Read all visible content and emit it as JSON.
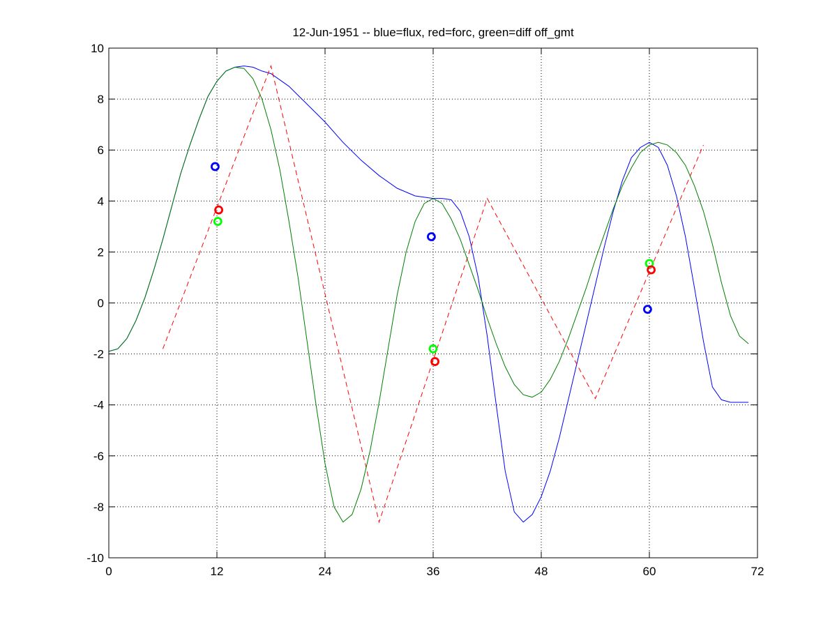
{
  "chart_data": {
    "type": "line",
    "title": "12-Jun-1951 -- blue=flux, red=forc, green=diff off_gmt",
    "xlabel": "",
    "ylabel": "",
    "xlim": [
      0,
      72
    ],
    "ylim": [
      -10,
      10
    ],
    "xticks": [
      0,
      12,
      24,
      36,
      48,
      60,
      72
    ],
    "yticks": [
      -10,
      -8,
      -6,
      -4,
      -2,
      0,
      2,
      4,
      6,
      8,
      10
    ],
    "grid": true,
    "series": [
      {
        "color": "#0000ff",
        "style": "solid",
        "x": [
          0,
          1,
          2,
          3,
          4,
          5,
          6,
          7,
          8,
          9,
          10,
          11,
          12,
          13,
          14,
          15,
          16,
          17,
          18,
          20,
          22,
          24,
          26,
          28,
          30,
          32,
          34,
          36,
          37,
          38,
          39,
          40,
          41,
          42,
          43,
          44,
          45,
          46,
          47,
          48,
          49,
          50,
          51,
          52,
          53,
          54,
          55,
          56,
          57,
          58,
          59,
          60,
          61,
          62,
          63,
          64,
          65,
          66,
          67,
          68,
          69,
          70,
          71
        ],
        "y": [
          -1.9,
          -1.8,
          -1.4,
          -0.7,
          0.2,
          1.3,
          2.5,
          3.8,
          5.1,
          6.2,
          7.2,
          8.1,
          8.7,
          9.1,
          9.25,
          9.3,
          9.25,
          9.1,
          9.0,
          8.5,
          7.8,
          7.1,
          6.3,
          5.6,
          5.0,
          4.5,
          4.2,
          4.1,
          4.1,
          4.05,
          3.6,
          2.6,
          1.0,
          -1.3,
          -4.0,
          -6.6,
          -8.2,
          -8.6,
          -8.3,
          -7.6,
          -6.6,
          -5.3,
          -3.8,
          -2.3,
          -0.8,
          0.7,
          2.2,
          3.6,
          4.8,
          5.7,
          6.1,
          6.3,
          6.1,
          5.4,
          4.2,
          2.6,
          0.6,
          -1.5,
          -3.3,
          -3.8,
          -3.9,
          -3.9,
          -3.9
        ]
      },
      {
        "color": "#ff0000",
        "style": "dashed",
        "x": [
          6,
          18,
          30,
          42,
          54,
          66
        ],
        "y": [
          -1.8,
          9.3,
          -8.6,
          4.1,
          -3.75,
          6.2
        ]
      },
      {
        "color": "#007f00",
        "style": "solid",
        "x": [
          0,
          1,
          2,
          3,
          4,
          5,
          6,
          7,
          8,
          9,
          10,
          11,
          12,
          13,
          14,
          15,
          16,
          17,
          18,
          19,
          20,
          21,
          22,
          23,
          24,
          25,
          26,
          27,
          28,
          29,
          30,
          31,
          32,
          33,
          34,
          35,
          36,
          37,
          38,
          39,
          40,
          41,
          42,
          43,
          44,
          45,
          46,
          47,
          48,
          49,
          50,
          51,
          52,
          53,
          54,
          55,
          56,
          57,
          58,
          59,
          60,
          61,
          62,
          63,
          64,
          65,
          66,
          67,
          68,
          69,
          70,
          71
        ],
        "y": [
          -1.9,
          -1.8,
          -1.4,
          -0.7,
          0.2,
          1.3,
          2.5,
          3.8,
          5.1,
          6.2,
          7.2,
          8.1,
          8.7,
          9.1,
          9.25,
          9.2,
          8.8,
          8.0,
          6.8,
          5.2,
          3.2,
          1.0,
          -1.5,
          -4.0,
          -6.3,
          -8.0,
          -8.6,
          -8.3,
          -7.3,
          -5.8,
          -3.9,
          -1.8,
          0.3,
          2.0,
          3.2,
          3.9,
          4.1,
          3.9,
          3.3,
          2.5,
          1.5,
          0.5,
          -0.6,
          -1.6,
          -2.5,
          -3.2,
          -3.6,
          -3.7,
          -3.5,
          -3.0,
          -2.3,
          -1.4,
          -0.4,
          0.6,
          1.7,
          2.7,
          3.7,
          4.6,
          5.3,
          5.9,
          6.2,
          6.3,
          6.2,
          5.9,
          5.4,
          4.6,
          3.6,
          2.3,
          0.8,
          -0.5,
          -1.3,
          -1.6
        ]
      }
    ],
    "markers": [
      {
        "x": 11.8,
        "y": 5.35,
        "color": "#0000ff"
      },
      {
        "x": 12.1,
        "y": 3.2,
        "color": "#00ff00"
      },
      {
        "x": 12.2,
        "y": 3.65,
        "color": "#ff0000"
      },
      {
        "x": 35.8,
        "y": 2.6,
        "color": "#0000ff"
      },
      {
        "x": 36.0,
        "y": -1.8,
        "color": "#00ff00"
      },
      {
        "x": 36.2,
        "y": -2.3,
        "color": "#ff0000"
      },
      {
        "x": 59.8,
        "y": -0.25,
        "color": "#0000ff"
      },
      {
        "x": 60.0,
        "y": 1.55,
        "color": "#00ff00"
      },
      {
        "x": 60.2,
        "y": 1.3,
        "color": "#ff0000"
      }
    ]
  }
}
